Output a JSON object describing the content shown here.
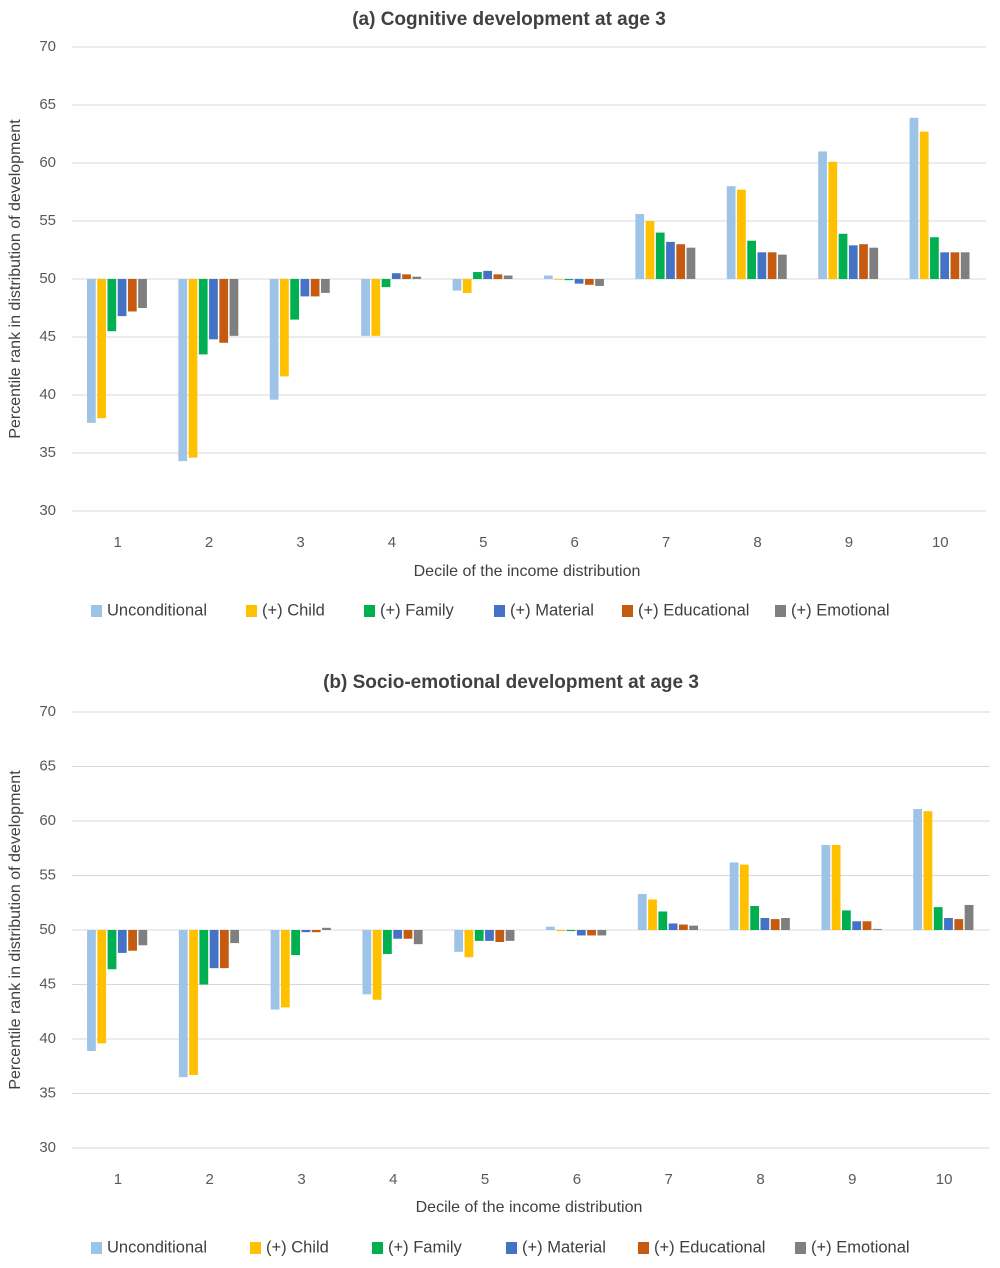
{
  "chart_data": [
    {
      "type": "bar",
      "title": "(a) Cognitive development at age 3",
      "xlabel": "Decile of the income distribution",
      "ylabel": "Percentile rank in distribution of development",
      "ylim": [
        30,
        70
      ],
      "yticks": [
        30,
        35,
        40,
        45,
        50,
        55,
        60,
        65,
        70
      ],
      "baseline": 50,
      "grid": true,
      "legend_position": "bottom",
      "categories": [
        "1",
        "2",
        "3",
        "4",
        "5",
        "6",
        "7",
        "8",
        "9",
        "10"
      ],
      "series": [
        {
          "name": "Unconditional",
          "color": "#9DC3E6",
          "values": [
            37.6,
            34.3,
            39.6,
            45.1,
            49.0,
            50.3,
            55.6,
            58.0,
            61.0,
            63.9
          ]
        },
        {
          "name": "(+) Child",
          "color": "#FFC000",
          "values": [
            38.0,
            34.6,
            41.6,
            45.1,
            48.8,
            50.0,
            55.0,
            57.7,
            60.1,
            62.7
          ]
        },
        {
          "name": "(+) Family",
          "color": "#00B050",
          "values": [
            45.5,
            43.5,
            46.5,
            49.3,
            50.6,
            49.9,
            54.0,
            53.3,
            53.9,
            53.6
          ]
        },
        {
          "name": "(+) Material",
          "color": "#4472C4",
          "values": [
            46.8,
            44.8,
            48.5,
            50.5,
            50.7,
            49.6,
            53.2,
            52.3,
            52.9,
            52.3
          ]
        },
        {
          "name": "(+) Educational",
          "color": "#C55A11",
          "values": [
            47.2,
            44.5,
            48.5,
            50.4,
            50.4,
            49.5,
            53.0,
            52.3,
            53.0,
            52.3
          ]
        },
        {
          "name": "(+) Emotional",
          "color": "#7F7F7F",
          "values": [
            47.5,
            45.1,
            48.8,
            50.2,
            50.3,
            49.4,
            52.7,
            52.1,
            52.7,
            52.3
          ]
        }
      ]
    },
    {
      "type": "bar",
      "title": "(b) Socio-emotional development at age 3",
      "xlabel": "Decile of the income distribution",
      "ylabel": "Percentile rank in distribution of development",
      "ylim": [
        30,
        70
      ],
      "yticks": [
        30,
        35,
        40,
        45,
        50,
        55,
        60,
        65,
        70
      ],
      "baseline": 50,
      "grid": true,
      "legend_position": "bottom",
      "categories": [
        "1",
        "2",
        "3",
        "4",
        "5",
        "6",
        "7",
        "8",
        "9",
        "10"
      ],
      "series": [
        {
          "name": "Unconditional",
          "color": "#9DC3E6",
          "values": [
            38.9,
            36.5,
            42.7,
            44.1,
            48.0,
            50.3,
            53.3,
            56.2,
            57.8,
            61.1
          ]
        },
        {
          "name": "(+) Child",
          "color": "#FFC000",
          "values": [
            39.6,
            36.7,
            42.9,
            43.6,
            47.5,
            49.9,
            52.8,
            56.0,
            57.8,
            60.9
          ]
        },
        {
          "name": "(+) Family",
          "color": "#00B050",
          "values": [
            46.4,
            45.0,
            47.7,
            47.8,
            49.0,
            49.9,
            51.7,
            52.2,
            51.8,
            52.1
          ]
        },
        {
          "name": "(+) Material",
          "color": "#4472C4",
          "values": [
            47.9,
            46.5,
            49.8,
            49.2,
            49.0,
            49.5,
            50.6,
            51.1,
            50.8,
            51.1
          ]
        },
        {
          "name": "(+) Educational",
          "color": "#C55A11",
          "values": [
            48.1,
            46.5,
            49.8,
            49.2,
            48.9,
            49.5,
            50.5,
            51.0,
            50.8,
            51.0
          ]
        },
        {
          "name": "(+) Emotional",
          "color": "#7F7F7F",
          "values": [
            48.6,
            48.8,
            50.2,
            48.7,
            49.0,
            49.5,
            50.4,
            51.1,
            50.1,
            52.3
          ]
        }
      ]
    }
  ]
}
